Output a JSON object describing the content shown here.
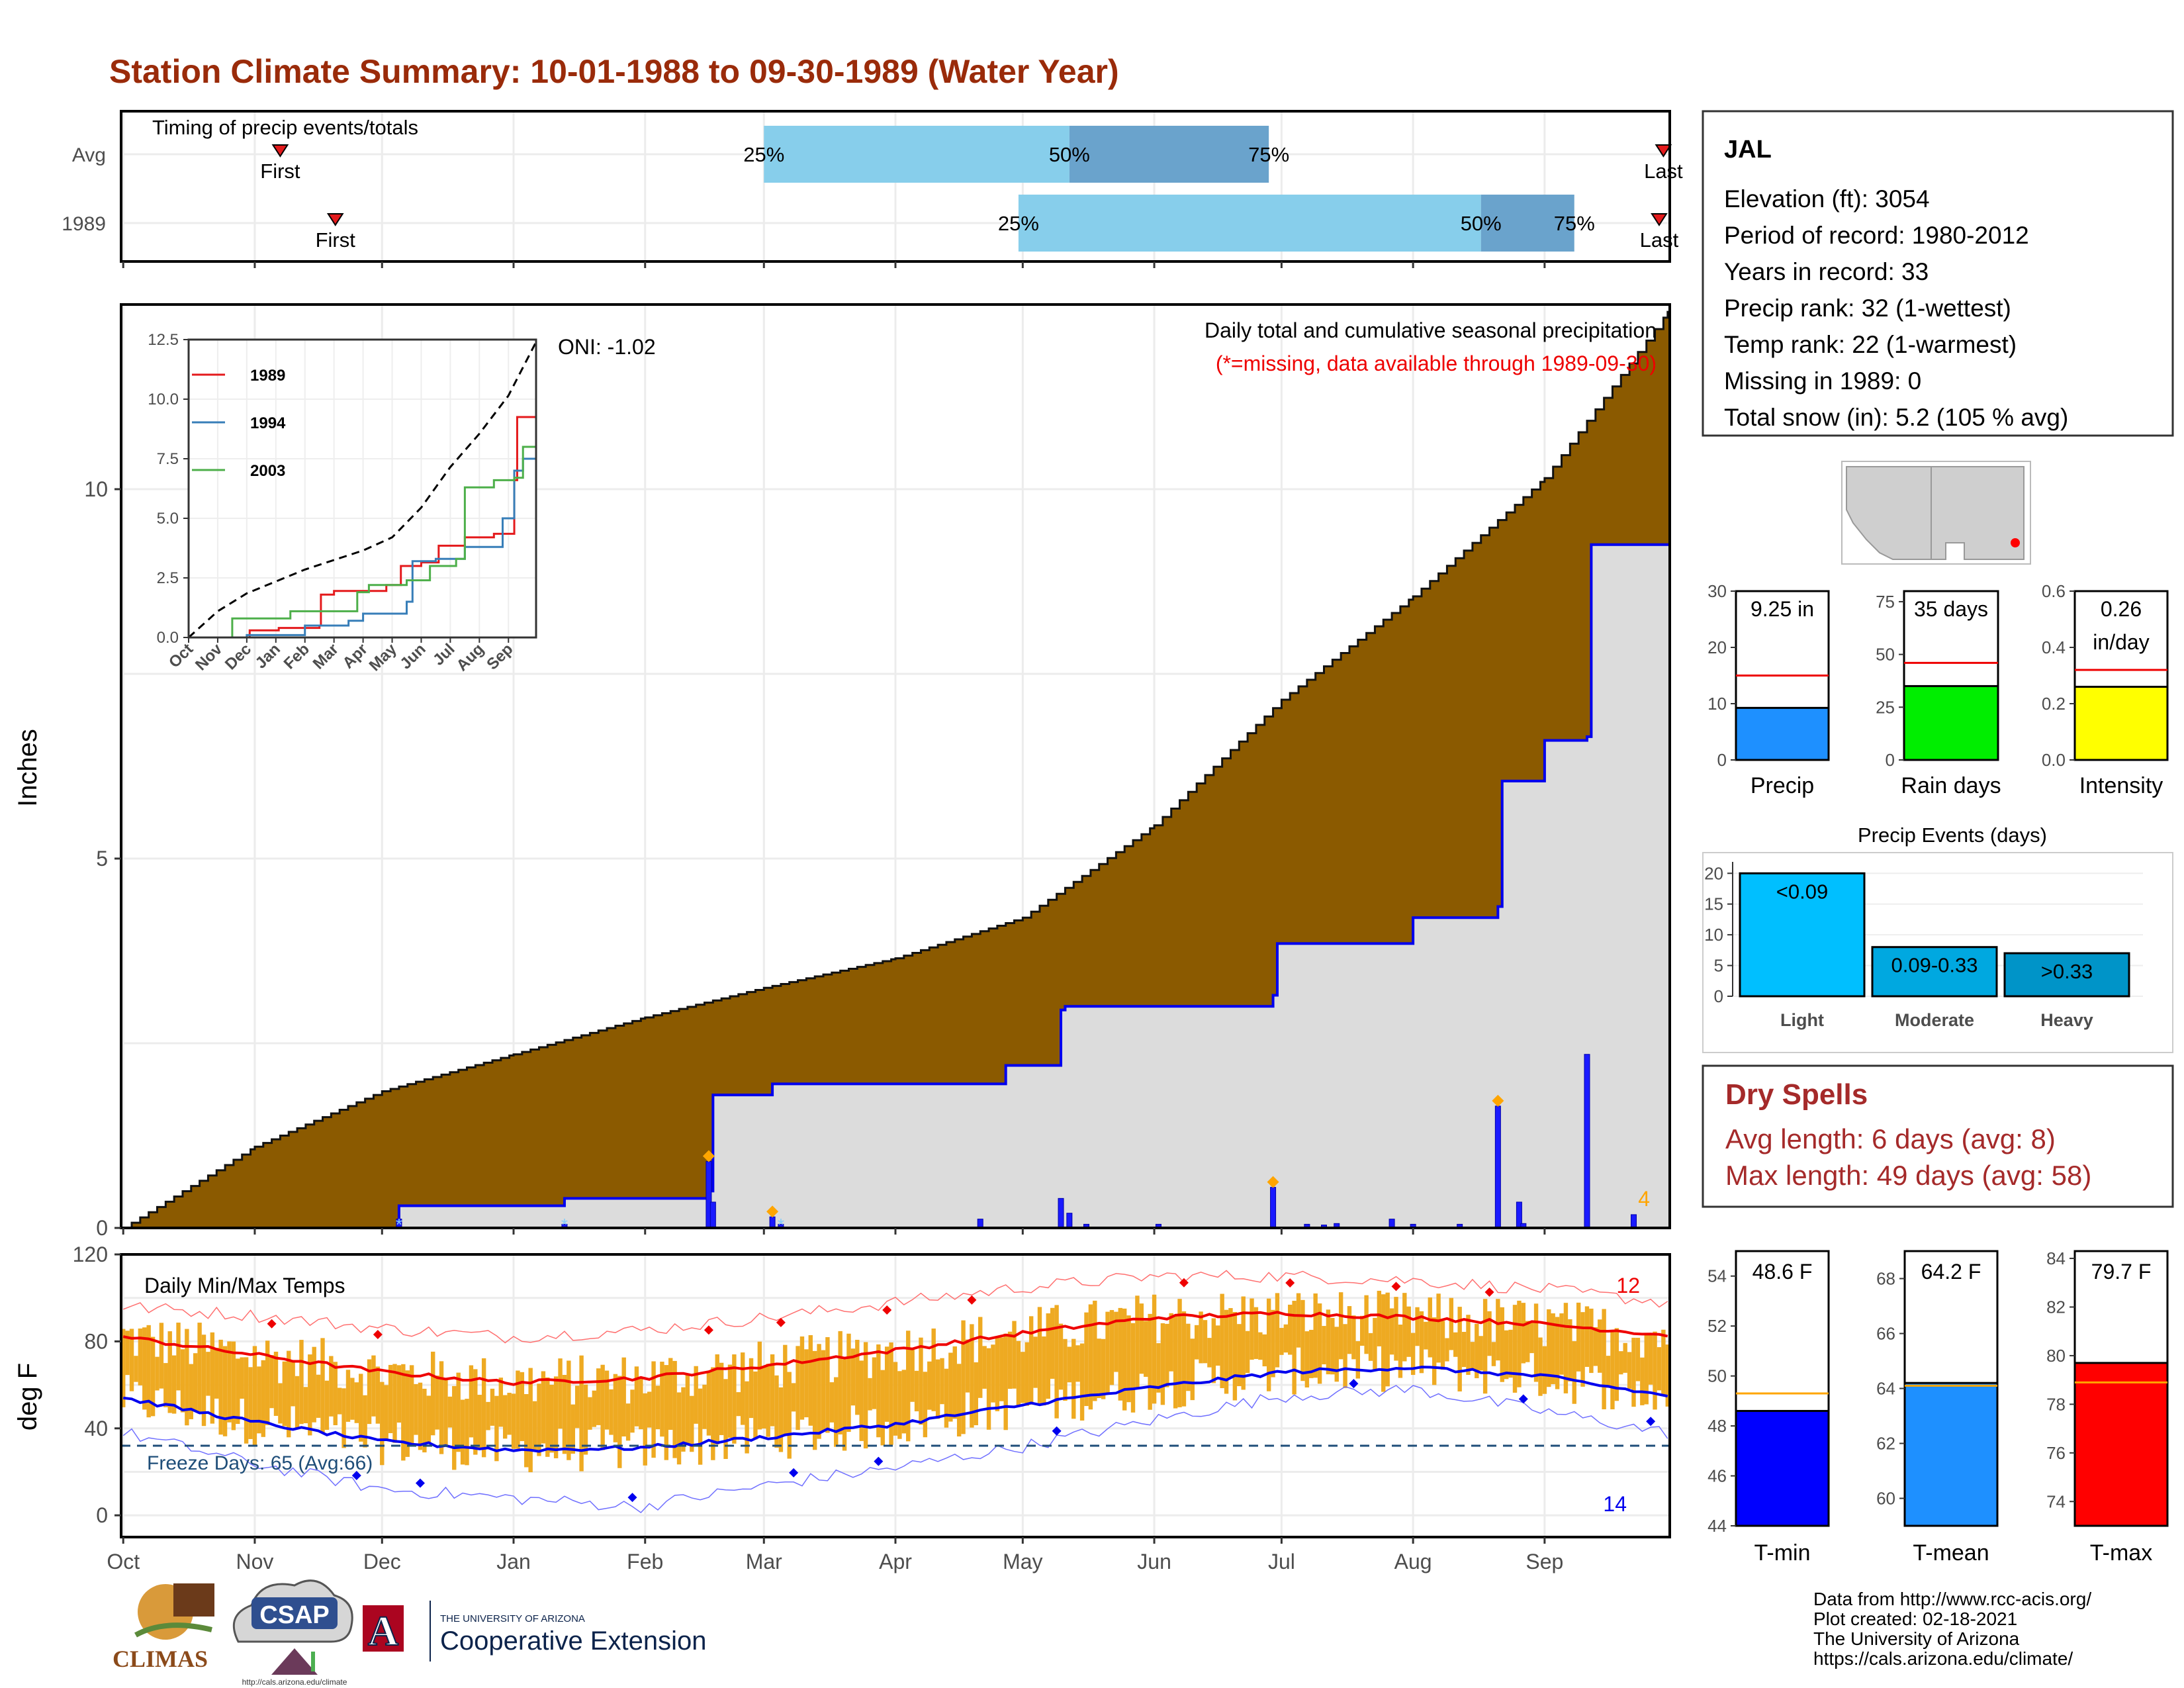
{
  "title": "Station Climate Summary: 10-01-1988 to 09-30-1989 (Water Year)",
  "colors": {
    "title": "#9a2b0a",
    "precip_fill": "#8b5a00",
    "normal_fill": "#dcdcdc",
    "blue": "#0000ee",
    "bar_light": "#87ceeb",
    "bar_dark": "#6aa3cc",
    "temp_bar": "#eeaa22",
    "red": "#ee0000",
    "precip_bar": "#1e90ff",
    "rain_bar": "#00ee00",
    "intensity_bar": "#ffff00",
    "event_bar": "#00b4f0",
    "dry_text": "#a52a2a",
    "tmin_bar": "#0000ff",
    "tmean_bar": "#1e90ff",
    "tmax_bar": "#ff0000"
  },
  "months": [
    "Oct",
    "Nov",
    "Dec",
    "Jan",
    "Feb",
    "Mar",
    "Apr",
    "May",
    "Jun",
    "Jul",
    "Aug",
    "Sep"
  ],
  "chart_data": [
    {
      "type": "bar",
      "title": "Timing of precip events/totals",
      "rows": [
        {
          "label": "Avg",
          "p25": "Feb 29",
          "p50": "May 12",
          "p75": "Jun 28",
          "first": "Nov 7",
          "last": "Sep 29",
          "labels": {
            "p25": "25%",
            "p50": "50%",
            "p75": "75%",
            "first": "First",
            "last": "Last"
          }
        },
        {
          "label": "1989",
          "p25": "Apr 30",
          "p50": "Aug 17",
          "p75": "Sep 8",
          "first": "Nov 20",
          "last": "Sep 28",
          "labels": {
            "p25": "25%",
            "p50": "50%",
            "p75": "75%",
            "first": "First",
            "last": "Last"
          }
        }
      ]
    },
    {
      "type": "area",
      "title": "Daily total and cumulative seasonal precipitation",
      "subtitle": "(*=missing, data available through 1989-09-30)",
      "ylabel": "Inches",
      "ylim": [
        0,
        12.5
      ],
      "yticks": [
        0,
        5,
        10
      ],
      "oni": "ONI: -1.02",
      "count_label": "4",
      "avg_cumulative": {
        "dates": [
          "Oct 1",
          "Nov 1",
          "Dec 1",
          "Jan 1",
          "Feb 1",
          "Mar 1",
          "Apr 1",
          "May 1",
          "Jun 1",
          "Jul 1",
          "Aug 1",
          "Sep 1",
          "Sep 30"
        ],
        "values": [
          0,
          1.1,
          1.85,
          2.35,
          2.85,
          3.25,
          3.65,
          4.2,
          5.45,
          7.15,
          8.55,
          10.15,
          12.4
        ]
      },
      "cumulative_1989": {
        "dates": [
          "Oct 1",
          "Dec 5",
          "Jan 13",
          "Feb 16",
          "Feb 17",
          "Mar 3",
          "Apr 27",
          "May 10",
          "May 11",
          "Jun 29",
          "Jun 30",
          "Aug 1",
          "Aug 21",
          "Aug 22",
          "Aug 24",
          "Sep 1",
          "Sep 11",
          "Sep 12",
          "Sep 30"
        ],
        "values": [
          0,
          0.3,
          0.4,
          0.5,
          1.8,
          1.95,
          2.2,
          2.95,
          3.0,
          3.15,
          3.85,
          4.2,
          4.35,
          6.05,
          6.05,
          6.6,
          6.65,
          9.25,
          9.25
        ]
      },
      "daily_bars": {
        "dates": [
          "Dec 5",
          "Jan 13",
          "Feb 16",
          "Feb 17",
          "Mar 3",
          "Mar 5",
          "Apr 21",
          "May 10",
          "May 12",
          "May 16",
          "Jun 2",
          "Jun 29",
          "Jul 7",
          "Jul 11",
          "Jul 14",
          "Jul 27",
          "Aug 1",
          "Aug 12",
          "Aug 21",
          "Aug 26",
          "Aug 27",
          "Sep 11",
          "Sep 22"
        ],
        "values": [
          0.12,
          0.05,
          0.9,
          0.35,
          0.15,
          0.05,
          0.12,
          0.4,
          0.2,
          0.05,
          0.05,
          0.55,
          0.05,
          0.04,
          0.06,
          0.12,
          0.05,
          0.05,
          1.65,
          0.35,
          0.06,
          2.35,
          0.18
        ]
      },
      "event_markers": [
        "Feb 16",
        "Mar 3",
        "Jun 29",
        "Aug 21"
      ],
      "missing_marks": [
        "Dec 5",
        "Jan 13",
        "Mar 5"
      ],
      "inset": {
        "type": "line",
        "ylim": [
          0,
          12.5
        ],
        "yticks": [
          "0.0",
          "2.5",
          "5.0",
          "7.5",
          "10.0",
          "12.5"
        ],
        "xticks": [
          "Oct",
          "Nov",
          "Dec",
          "Jan",
          "Feb",
          "Mar",
          "Apr",
          "May",
          "Jun",
          "Jul",
          "Aug",
          "Sep"
        ],
        "series": [
          {
            "name": "1989",
            "color": "#e41a1c",
            "x": [
              0,
              2.1,
              3.1,
              4.5,
              4.55,
              5,
              6.8,
              7.3,
              8,
              8.6,
              9.5,
              10.5,
              11.2,
              11.3,
              11.5,
              11.95
            ],
            "y": [
              0,
              0.3,
              0.4,
              0.5,
              1.8,
              1.95,
              2.2,
              3.0,
              3.15,
              3.85,
              4.2,
              4.35,
              6.6,
              9.25,
              9.25,
              9.25
            ]
          },
          {
            "name": "1994",
            "color": "#377eb8",
            "x": [
              0,
              2,
              4,
              5.5,
              6,
              7.5,
              7.7,
              8.5,
              9.5,
              10.8,
              11.2,
              11.5,
              11.95
            ],
            "y": [
              0,
              0.1,
              0.5,
              0.7,
              1.0,
              1.5,
              3.2,
              3.3,
              3.8,
              5.0,
              7.0,
              7.5,
              8.5
            ]
          },
          {
            "name": "2003",
            "color": "#4daf4a",
            "x": [
              0,
              1.5,
              3.5,
              5.8,
              6.2,
              7.5,
              8.3,
              9.2,
              9.5,
              10.5,
              11.2,
              11.5,
              11.95
            ],
            "y": [
              0,
              0.8,
              1.1,
              1.9,
              2.2,
              2.4,
              3.0,
              3.3,
              6.3,
              6.6,
              6.7,
              8.0,
              9.2
            ]
          }
        ],
        "avg_dashed": {
          "x": [
            0,
            1,
            2,
            3,
            4,
            5,
            6,
            7,
            8,
            9,
            10,
            11,
            11.95
          ],
          "y": [
            0,
            1.1,
            1.85,
            2.35,
            2.85,
            3.25,
            3.65,
            4.2,
            5.45,
            7.15,
            8.55,
            10.15,
            12.4
          ]
        }
      }
    },
    {
      "type": "line",
      "title": "Daily Min/Max Temps",
      "ylabel": "deg F",
      "ylim": [
        -10,
        120
      ],
      "yticks": [
        0,
        40,
        80,
        120
      ],
      "freeze_label": "Freeze Days: 65 (Avg:66)",
      "freeze_line": 32,
      "count_high": "12",
      "count_low": "14",
      "avg_max": {
        "x": [
          0,
          1,
          2,
          3,
          4,
          5,
          6,
          7,
          8,
          9,
          10,
          11,
          11.95
        ],
        "y": [
          82,
          74,
          66,
          61,
          63,
          69,
          76,
          84,
          91,
          93,
          91,
          88,
          83
        ]
      },
      "avg_min": {
        "x": [
          0,
          1,
          2,
          3,
          4,
          5,
          6,
          7,
          8,
          9,
          10,
          11,
          11.95
        ],
        "y": [
          54,
          43,
          34,
          30,
          31,
          36,
          42,
          51,
          59,
          66,
          68,
          64,
          55
        ]
      },
      "record_max": {
        "x": [
          0,
          1,
          2,
          3,
          4,
          5,
          6,
          7,
          8,
          9,
          10,
          11,
          11.95
        ],
        "y": [
          96,
          92,
          86,
          82,
          85,
          91,
          98,
          105,
          110,
          110,
          108,
          104,
          98
        ]
      },
      "record_min": {
        "x": [
          0,
          1,
          2,
          3,
          4,
          5,
          6,
          7,
          8,
          9,
          10,
          11,
          11.95
        ],
        "y": [
          38,
          24,
          12,
          8,
          4,
          14,
          22,
          32,
          44,
          55,
          58,
          48,
          38
        ]
      }
    },
    {
      "type": "bar",
      "title": "Precip",
      "ylim": [
        0,
        30
      ],
      "yticks": [
        0,
        10,
        20,
        30
      ],
      "value": 9.25,
      "avg": 15,
      "value_label": "9.25 in"
    },
    {
      "type": "bar",
      "title": "Rain days",
      "ylim": [
        0,
        80
      ],
      "yticks": [
        0,
        25,
        50,
        75
      ],
      "value": 35,
      "avg": 46,
      "value_label": "35 days"
    },
    {
      "type": "bar",
      "title": "Intensity",
      "ylim": [
        0,
        0.6
      ],
      "yticks": [
        "0.0",
        "0.2",
        "0.4",
        "0.6"
      ],
      "value": 0.26,
      "avg": 0.32,
      "value_label": [
        "0.26",
        "in/day"
      ]
    },
    {
      "type": "bar",
      "title": "Precip Events (days)",
      "categories": [
        "Light",
        "Moderate",
        "Heavy"
      ],
      "values": [
        20,
        8,
        7
      ],
      "bar_labels": [
        "<0.09",
        "0.09-0.33",
        ">0.33"
      ],
      "ylim": [
        0,
        21
      ],
      "yticks": [
        0,
        5,
        10,
        15,
        20
      ]
    },
    {
      "type": "bar",
      "title": "T-min",
      "ylim": [
        44,
        55
      ],
      "yticks": [
        44,
        46,
        48,
        50,
        52,
        54
      ],
      "value": 48.6,
      "avg": 49.3,
      "value_label": "48.6 F"
    },
    {
      "type": "bar",
      "title": "T-mean",
      "ylim": [
        59,
        69
      ],
      "yticks": [
        60,
        62,
        64,
        66,
        68
      ],
      "value": 64.2,
      "avg": 64.1,
      "value_label": "64.2 F"
    },
    {
      "type": "bar",
      "title": "T-max",
      "ylim": [
        73,
        84.3
      ],
      "yticks": [
        74,
        76,
        78,
        80,
        82,
        84
      ],
      "value": 79.7,
      "avg": 78.9,
      "value_label": "79.7 F"
    }
  ],
  "station": {
    "name": "JAL",
    "lines": [
      "Elevation (ft): 3054",
      "Period of record: 1980-2012",
      "Years in record: 33",
      "Precip rank: 32 (1-wettest)",
      "Temp rank: 22 (1-warmest)",
      "Missing in 1989: 0",
      "Total snow (in): 5.2 (105 % avg)"
    ]
  },
  "dry_spells": {
    "title": "Dry Spells",
    "avg_length": "Avg length: 6 days (avg: 8)",
    "max_length": "Max length: 49 days (avg: 58)"
  },
  "footer": {
    "lines": [
      "Data from http://www.rcc-acis.org/",
      "Plot created: 02-18-2021",
      "The University of Arizona",
      "https://cals.arizona.edu/climate/"
    ],
    "logos": {
      "climas": "CLIMAS",
      "csap": "CSAP",
      "csap_url": "http://cals.arizona.edu/climate",
      "ua_letter": "A",
      "ua_small": "THE UNIVERSITY OF ARIZONA",
      "ua_big": "Cooperative Extension"
    }
  }
}
